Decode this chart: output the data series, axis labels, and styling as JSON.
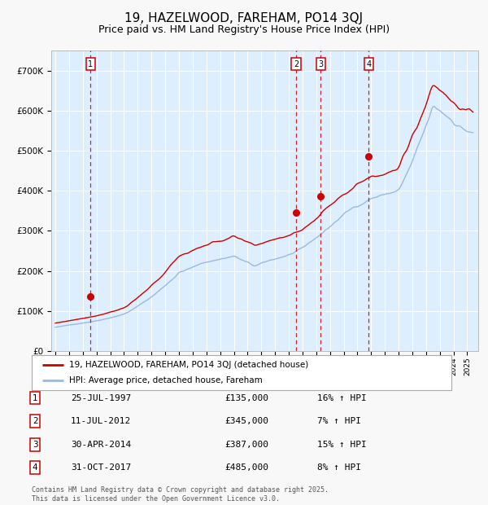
{
  "title": "19, HAZELWOOD, FAREHAM, PO14 3QJ",
  "subtitle": "Price paid vs. HM Land Registry's House Price Index (HPI)",
  "title_fontsize": 11,
  "subtitle_fontsize": 9,
  "plot_bg_color": "#ddeeff",
  "fig_bg_color": "#f8f8f8",
  "grid_color": "#ffffff",
  "red_line_color": "#cc0000",
  "blue_line_color": "#99bbdd",
  "transaction_markers": [
    {
      "label": "1",
      "date_x": 1997.56,
      "price": 135000
    },
    {
      "label": "2",
      "date_x": 2012.53,
      "price": 345000
    },
    {
      "label": "3",
      "date_x": 2014.33,
      "price": 387000
    },
    {
      "label": "4",
      "date_x": 2017.83,
      "price": 485000
    }
  ],
  "table_entries": [
    {
      "num": "1",
      "date": "25-JUL-1997",
      "price": "£135,000",
      "pct": "16% ↑ HPI"
    },
    {
      "num": "2",
      "date": "11-JUL-2012",
      "price": "£345,000",
      "pct": "7% ↑ HPI"
    },
    {
      "num": "3",
      "date": "30-APR-2014",
      "price": "£387,000",
      "pct": "15% ↑ HPI"
    },
    {
      "num": "4",
      "date": "31-OCT-2017",
      "price": "£485,000",
      "pct": "8% ↑ HPI"
    }
  ],
  "legend_entries": [
    {
      "label": "19, HAZELWOOD, FAREHAM, PO14 3QJ (detached house)",
      "color": "#cc0000"
    },
    {
      "label": "HPI: Average price, detached house, Fareham",
      "color": "#99bbdd"
    }
  ],
  "footer": "Contains HM Land Registry data © Crown copyright and database right 2025.\nThis data is licensed under the Open Government Licence v3.0.",
  "ylim": [
    0,
    750000
  ],
  "yticks": [
    0,
    100000,
    200000,
    300000,
    400000,
    500000,
    600000,
    700000
  ],
  "ytick_labels": [
    "£0",
    "£100K",
    "£200K",
    "£300K",
    "£400K",
    "£500K",
    "£600K",
    "£700K"
  ],
  "xlim_start": 1994.7,
  "xlim_end": 2025.8
}
